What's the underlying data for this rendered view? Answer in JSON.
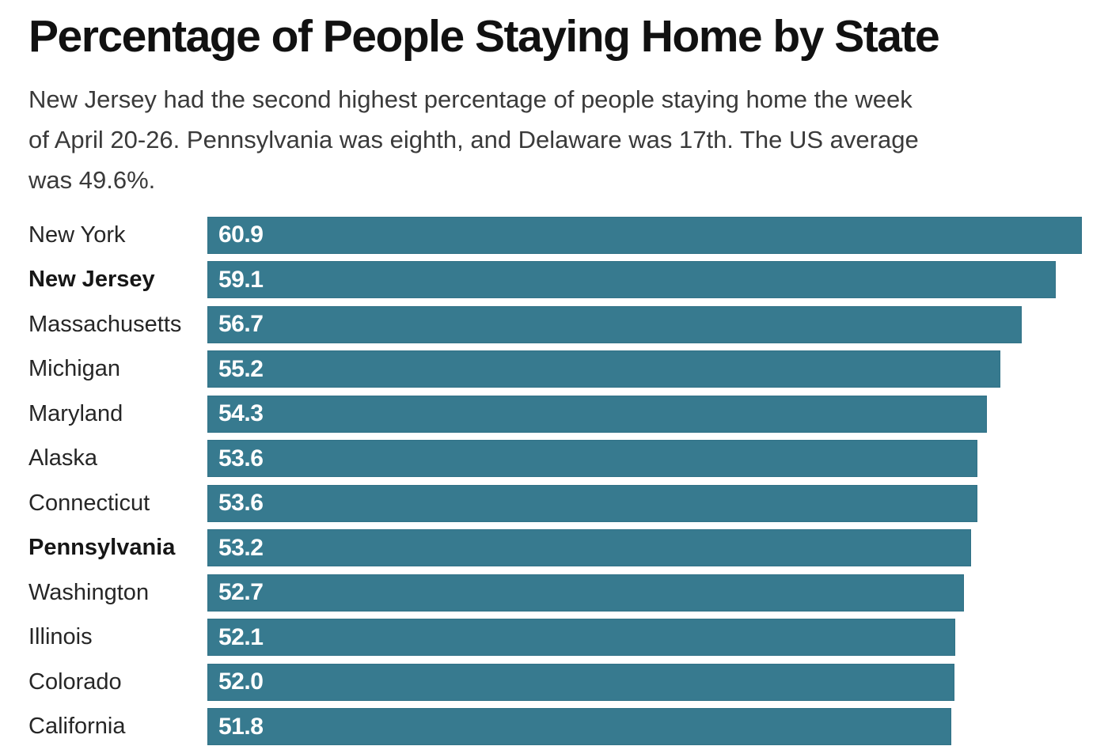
{
  "page": {
    "background": "#ffffff"
  },
  "chart_data": {
    "type": "bar",
    "orientation": "horizontal",
    "title": "Percentage of People Staying Home by State",
    "subtitle": "New Jersey had the second highest percentage of people staying home the week of April 20-26. Pennsylvania was eighth, and Delaware was 17th. The US average was 49.6%.",
    "subtitle_lines": [
      "New Jersey had the second highest percentage of people staying home the week",
      "of April 20-26. Pennsylvania was eighth, and Delaware was 17th. The US average",
      "was 49.6%."
    ],
    "categories": [
      "New York",
      "New Jersey",
      "Massachusetts",
      "Michigan",
      "Maryland",
      "Alaska",
      "Connecticut",
      "Pennsylvania",
      "Washington",
      "Illinois",
      "Colorado",
      "California"
    ],
    "values": [
      60.9,
      59.1,
      56.7,
      55.2,
      54.3,
      53.6,
      53.6,
      53.2,
      52.7,
      52.1,
      52.0,
      51.8
    ],
    "value_labels": [
      "60.9",
      "59.1",
      "56.7",
      "55.2",
      "54.3",
      "53.6",
      "53.6",
      "53.2",
      "52.7",
      "52.1",
      "52.0",
      "51.8"
    ],
    "bold_categories": [
      "New Jersey",
      "Pennsylvania"
    ],
    "us_average_note": "49.6%",
    "xlim": [
      0,
      60.9
    ],
    "grid": false,
    "legend": false,
    "value_labels_shown": true,
    "colors": {
      "bar": "#377A8F",
      "bar_border": "#2B6377",
      "value_label": "#FFFFFF",
      "title": "#111111",
      "subtitle": "#3A3A3A",
      "category_label": "#262626"
    }
  }
}
